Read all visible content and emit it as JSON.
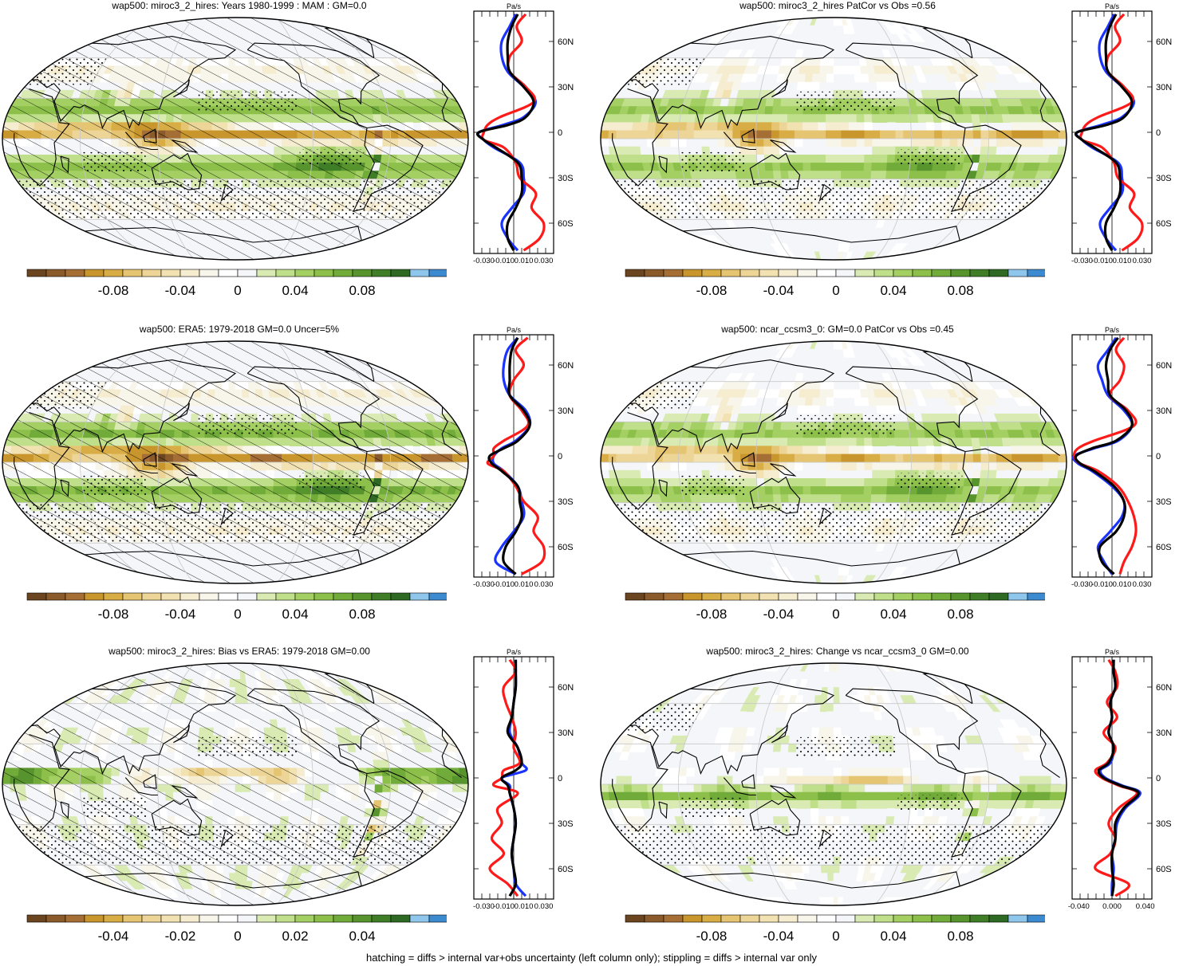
{
  "palette": [
    "#6b4520",
    "#8a5a2a",
    "#a56e35",
    "#c8962c",
    "#d9ad45",
    "#e6c572",
    "#ecd596",
    "#f2e2b2",
    "#f6ecd0",
    "#f8f5ea",
    "#ffffff",
    "#f4f6fa",
    "#d9ebb3",
    "#bfdf8a",
    "#a4cf63",
    "#8cc04a",
    "#71ab3a",
    "#57942e",
    "#3f7d27",
    "#2e6a23",
    "#8ec6ec",
    "#3c8ad0"
  ],
  "line_colors": {
    "model": "#1a33ff",
    "obs": "#ff1a1a",
    "diff": "#000000"
  },
  "legend_note": "hatching = diffs > internal var+obs uncertainty (left column only); stippling = diffs > internal var only",
  "chart_data": [
    {
      "id": "p1",
      "type": "heatmap",
      "title": "wap500: miroc3_2_hires: Years 1980-1999 : MAM : GM=0.0",
      "colorbar_ticks": [
        "-0.08",
        "-0.04",
        "0",
        "0.04",
        "0.08"
      ],
      "hatching": true,
      "profile": {
        "unit": "Pa/s",
        "xticks": [
          "-0.030",
          "-0.010",
          "0.010",
          "0.030"
        ],
        "xrange": [
          -0.04,
          0.04
        ],
        "yticks": [
          "60N",
          "30N",
          "0",
          "30S",
          "60S"
        ],
        "ylim": [
          -80,
          80
        ],
        "lat": [
          78,
          70,
          60,
          50,
          40,
          30,
          20,
          10,
          5,
          0,
          -5,
          -10,
          -20,
          -30,
          -40,
          -50,
          -60,
          -70,
          -78
        ],
        "series": [
          {
            "values": [
              0.002,
              -0.004,
              -0.012,
              -0.012,
              -0.006,
              0.01,
              0.022,
              0.01,
              -0.01,
              -0.035,
              -0.03,
              -0.02,
              0.006,
              0.01,
              0.01,
              -0.002,
              -0.012,
              -0.006,
              0.004
            ]
          },
          {
            "values": [
              0.012,
              0.003,
              0.008,
              -0.004,
              -0.004,
              0.012,
              0.02,
              -0.014,
              -0.026,
              -0.03,
              -0.03,
              -0.01,
              0.002,
              0.006,
              0.022,
              0.018,
              0.03,
              0.026,
              0.01
            ]
          },
          {
            "values": [
              0.004,
              -0.002,
              -0.006,
              -0.006,
              -0.004,
              0.01,
              0.02,
              0.012,
              -0.005,
              -0.035,
              -0.03,
              -0.018,
              0.004,
              0.008,
              0.008,
              0.002,
              -0.006,
              -0.006,
              0.0
            ]
          }
        ]
      }
    },
    {
      "id": "p2",
      "type": "heatmap",
      "title": "wap500: miroc3_2_hires PatCor vs Obs =0.56",
      "colorbar_ticks": [
        "-0.08",
        "-0.04",
        "0",
        "0.04",
        "0.08"
      ],
      "hatching": false,
      "profile": {
        "unit": "Pa/s",
        "xticks": [
          "-0.030",
          "-0.010",
          "0.010",
          "0.030"
        ],
        "xrange": [
          -0.04,
          0.04
        ],
        "yticks": [
          "60N",
          "30N",
          "0",
          "30S",
          "60S"
        ],
        "ylim": [
          -80,
          80
        ],
        "lat": [
          78,
          70,
          60,
          50,
          40,
          30,
          20,
          10,
          5,
          0,
          -5,
          -10,
          -20,
          -30,
          -40,
          -50,
          -60,
          -70,
          -78
        ],
        "series": [
          {
            "values": [
              0.002,
              -0.004,
              -0.012,
              -0.012,
              -0.006,
              0.01,
              0.022,
              0.01,
              -0.01,
              -0.035,
              -0.03,
              -0.02,
              0.006,
              0.01,
              0.01,
              -0.002,
              -0.012,
              -0.006,
              0.004
            ]
          },
          {
            "values": [
              0.012,
              0.003,
              0.008,
              -0.004,
              -0.004,
              0.012,
              0.02,
              -0.014,
              -0.026,
              -0.03,
              -0.03,
              -0.01,
              0.002,
              0.006,
              0.022,
              0.018,
              0.03,
              0.026,
              0.01
            ]
          },
          {
            "values": [
              0.004,
              -0.002,
              -0.006,
              -0.006,
              -0.004,
              0.01,
              0.02,
              0.012,
              -0.005,
              -0.035,
              -0.03,
              -0.018,
              0.004,
              0.008,
              0.008,
              0.002,
              -0.006,
              -0.006,
              0.0
            ]
          }
        ]
      }
    },
    {
      "id": "p3",
      "type": "heatmap",
      "title": "wap500: ERA5: 1979-2018 GM=0.0 Uncer=5%",
      "colorbar_ticks": [
        "-0.08",
        "-0.04",
        "0",
        "0.04",
        "0.08"
      ],
      "hatching": true,
      "profile": {
        "unit": "Pa/s",
        "xticks": [
          "-0.030",
          "-0.010",
          "0.010",
          "0.030"
        ],
        "xrange": [
          -0.04,
          0.04
        ],
        "yticks": [
          "60N",
          "30N",
          "0",
          "30S",
          "60S"
        ],
        "ylim": [
          -80,
          80
        ],
        "lat": [
          78,
          70,
          60,
          50,
          40,
          30,
          20,
          10,
          5,
          0,
          -5,
          -10,
          -20,
          -30,
          -40,
          -50,
          -60,
          -70,
          -78
        ],
        "series": [
          {
            "values": [
              0.004,
              -0.006,
              -0.01,
              -0.01,
              -0.004,
              0.012,
              0.016,
              0.002,
              -0.012,
              -0.02,
              -0.02,
              -0.01,
              0.004,
              0.008,
              0.01,
              0.0,
              -0.012,
              -0.018,
              0.002
            ]
          },
          {
            "values": [
              0.014,
              0.002,
              0.01,
              0.0,
              -0.004,
              0.008,
              0.014,
              -0.01,
              -0.02,
              -0.02,
              -0.026,
              -0.01,
              0.002,
              0.01,
              0.024,
              0.02,
              0.03,
              0.028,
              0.008
            ]
          },
          {
            "values": [
              0.004,
              -0.002,
              -0.004,
              -0.004,
              -0.004,
              0.01,
              0.016,
              0.004,
              -0.01,
              -0.024,
              -0.022,
              -0.012,
              0.004,
              0.006,
              0.008,
              0.002,
              -0.008,
              -0.01,
              0.002
            ]
          }
        ]
      }
    },
    {
      "id": "p4",
      "type": "heatmap",
      "title": "wap500: ncar_ccsm3_0: GM=0.0 PatCor vs Obs =0.45",
      "colorbar_ticks": [
        "-0.08",
        "-0.04",
        "0",
        "0.04",
        "0.08"
      ],
      "hatching": false,
      "profile": {
        "unit": "Pa/s",
        "xticks": [
          "-0.030",
          "-0.010",
          "0.010",
          "0.030"
        ],
        "xrange": [
          -0.04,
          0.04
        ],
        "yticks": [
          "60N",
          "30N",
          "0",
          "30S",
          "60S"
        ],
        "ylim": [
          -80,
          80
        ],
        "lat": [
          78,
          70,
          60,
          50,
          40,
          30,
          20,
          10,
          5,
          0,
          -5,
          -10,
          -20,
          -30,
          -40,
          -50,
          -60,
          -70,
          -78
        ],
        "series": [
          {
            "values": [
              0.004,
              -0.004,
              -0.014,
              -0.01,
              -0.004,
              0.012,
              0.02,
              0.006,
              -0.018,
              -0.038,
              -0.034,
              -0.02,
              0.0,
              0.012,
              0.01,
              -0.002,
              -0.014,
              -0.008,
              0.0
            ]
          },
          {
            "values": [
              0.012,
              0.004,
              0.012,
              0.008,
              -0.002,
              0.016,
              0.022,
              -0.018,
              -0.034,
              -0.038,
              -0.032,
              -0.014,
              0.006,
              0.016,
              0.022,
              0.024,
              0.02,
              0.012,
              0.008
            ]
          },
          {
            "values": [
              0.006,
              -0.002,
              -0.006,
              -0.004,
              -0.002,
              0.014,
              0.02,
              0.004,
              -0.02,
              -0.036,
              -0.032,
              -0.018,
              0.002,
              0.012,
              0.012,
              0.004,
              -0.012,
              -0.01,
              0.002
            ]
          }
        ]
      }
    },
    {
      "id": "p5",
      "type": "heatmap",
      "title": "wap500: miroc3_2_hires: Bias vs ERA5: 1979-2018 GM=0.00",
      "colorbar_ticks": [
        "-0.04",
        "-0.02",
        "0",
        "0.02",
        "0.04"
      ],
      "hatching": true,
      "profile": {
        "unit": "Pa/s",
        "xticks": [
          "-0.030",
          "-0.010",
          "0.010",
          "0.030"
        ],
        "xrange": [
          -0.04,
          0.04
        ],
        "yticks": [
          "60N",
          "30N",
          "0",
          "30S",
          "60S"
        ],
        "ylim": [
          -80,
          80
        ],
        "lat": [
          78,
          70,
          60,
          50,
          40,
          30,
          20,
          10,
          5,
          0,
          -5,
          -10,
          -20,
          -30,
          -40,
          -50,
          -60,
          -70,
          -78
        ],
        "series": [
          {
            "values": [
              0.002,
              0.002,
              0.002,
              0.0,
              -0.002,
              -0.004,
              0.004,
              0.008,
              0.012,
              -0.012,
              -0.004,
              -0.004,
              0.0,
              0.002,
              0.0,
              -0.002,
              0.0,
              0.002,
              0.012
            ]
          },
          {
            "values": [
              -0.004,
              0.002,
              -0.01,
              -0.008,
              -0.002,
              0.002,
              0.0,
              0.006,
              -0.01,
              -0.012,
              -0.02,
              0.004,
              -0.016,
              -0.012,
              -0.022,
              -0.01,
              -0.024,
              -0.006,
              0.004
            ]
          },
          {
            "values": [
              0.002,
              0.002,
              0.002,
              0.0,
              -0.002,
              -0.006,
              0.004,
              0.008,
              0.002,
              -0.012,
              -0.006,
              -0.004,
              0.0,
              0.002,
              0.0,
              -0.002,
              0.0,
              0.002,
              -0.004
            ]
          }
        ]
      }
    },
    {
      "id": "p6",
      "type": "heatmap",
      "title": "wap500: miroc3_2_hires: Change vs ncar_ccsm3_0 GM=0.00",
      "colorbar_ticks": [
        "-0.08",
        "-0.04",
        "0",
        "0.04",
        "0.08"
      ],
      "hatching": false,
      "profile": {
        "unit": "Pa/s",
        "xticks": [
          "-0.040",
          "0.000",
          "0.040"
        ],
        "xrange": [
          -0.048,
          0.048
        ],
        "yticks": [
          "60N",
          "30N",
          "0",
          "30S",
          "60S"
        ],
        "ylim": [
          -80,
          80
        ],
        "lat": [
          78,
          70,
          60,
          50,
          40,
          30,
          20,
          10,
          5,
          0,
          -5,
          -10,
          -20,
          -30,
          -40,
          -50,
          -60,
          -70,
          -78
        ],
        "series": [
          {
            "values": [
              0.002,
              0.002,
              0.004,
              -0.002,
              0.0,
              -0.004,
              0.002,
              -0.002,
              -0.014,
              -0.008,
              0.012,
              0.034,
              0.016,
              0.006,
              0.004,
              0.0,
              0.002,
              0.0,
              0.0
            ]
          },
          {
            "values": [
              -0.004,
              0.004,
              0.006,
              -0.006,
              0.006,
              -0.01,
              0.004,
              -0.006,
              -0.02,
              -0.012,
              0.008,
              0.03,
              0.008,
              -0.004,
              0.004,
              -0.002,
              -0.02,
              0.02,
              0.004
            ]
          },
          {
            "values": [
              0.002,
              0.002,
              0.004,
              -0.002,
              0.0,
              -0.004,
              0.002,
              -0.004,
              -0.016,
              -0.01,
              0.01,
              0.032,
              0.014,
              0.004,
              0.004,
              0.0,
              0.0,
              0.002,
              0.0
            ]
          }
        ]
      }
    }
  ]
}
